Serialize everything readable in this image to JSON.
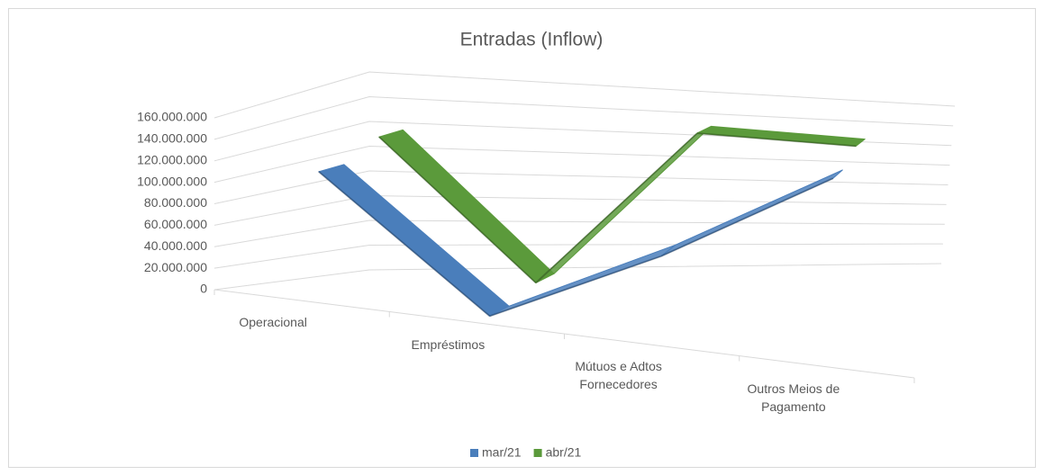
{
  "chart_data": {
    "type": "line3d",
    "title": "Entradas (Inflow)",
    "categories": [
      "Operacional",
      "Empréstimos",
      "Mútuos e Adtos Fornecedores",
      "Outros Meios de Pagamento"
    ],
    "series": [
      {
        "name": "mar/21",
        "color": "#4a7ebb",
        "values": [
          110000000,
          0,
          60000000,
          125000000
        ]
      },
      {
        "name": "abr/21",
        "color": "#5b9a3b",
        "values": [
          125000000,
          8000000,
          140000000,
          135000000
        ]
      }
    ],
    "ylim": [
      0,
      160000000
    ],
    "yticks": [
      0,
      {
        "value": 20000000,
        "label": "20.000.000"
      },
      {
        "value": 40000000,
        "label": "40.000.000"
      },
      {
        "value": 60000000,
        "label": "60.000.000"
      },
      {
        "value": 80000000,
        "label": "80.000.000"
      },
      {
        "value": 100000000,
        "label": "100.000.000"
      },
      {
        "value": 120000000,
        "label": "120.000.000"
      },
      {
        "value": 140000000,
        "label": "140.000.000"
      },
      {
        "value": 160000000,
        "label": "160.000.000"
      }
    ],
    "grid": true,
    "legend": "bottom"
  }
}
